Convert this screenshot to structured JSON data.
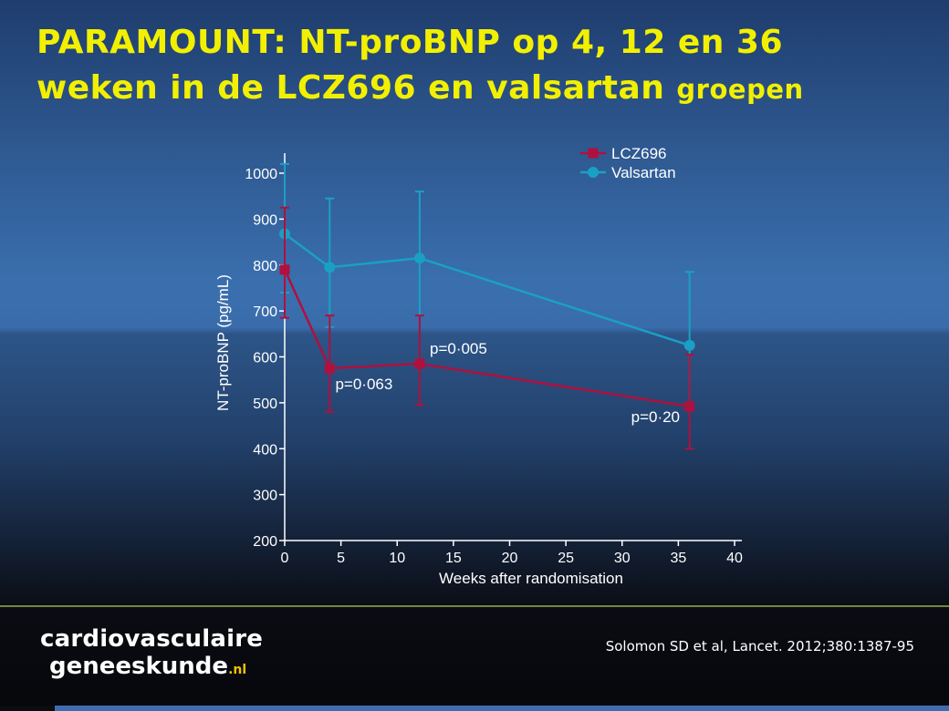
{
  "title": {
    "line1": "PARAMOUNT: NT-proBNP op  4, 12 en 36",
    "line2_main": "weken in de LCZ696 en valsartan",
    "line2_small": "groepen"
  },
  "chart_data": {
    "type": "line",
    "xlabel": "Weeks after randomisation",
    "ylabel": "NT-proBNP (pg/mL)",
    "xlim": [
      0,
      40
    ],
    "ylim": [
      200,
      1000
    ],
    "x_ticks": [
      0,
      5,
      10,
      15,
      20,
      25,
      30,
      35,
      40
    ],
    "y_ticks": [
      200,
      300,
      400,
      500,
      600,
      700,
      800,
      900,
      1000
    ],
    "grid": false,
    "legend_position": "top-right",
    "series": [
      {
        "name": "LCZ696",
        "color": "#b0103e",
        "marker": "square",
        "x": [
          0,
          4,
          12,
          36
        ],
        "y": [
          790,
          575,
          585,
          492
        ],
        "err_low": [
          685,
          480,
          495,
          400
        ],
        "err_high": [
          925,
          690,
          690,
          605
        ]
      },
      {
        "name": "Valsartan",
        "color": "#1aa0c4",
        "marker": "circle",
        "x": [
          0,
          4,
          12,
          36
        ],
        "y": [
          868,
          795,
          815,
          625
        ],
        "err_low": [
          740,
          665,
          690,
          492
        ],
        "err_high": [
          1020,
          945,
          960,
          785
        ]
      }
    ],
    "annotations": [
      {
        "text": "p=0·063",
        "x": 4.5,
        "y": 530
      },
      {
        "text": "p=0·005",
        "x": 12.9,
        "y": 607
      },
      {
        "text": "p=0·20",
        "x": 30.8,
        "y": 458
      }
    ]
  },
  "footer": {
    "logo_line1": "cardiovasculaire",
    "logo_line2": "geneeskunde",
    "logo_suffix": ".nl",
    "citation": "Solomon SD et al, Lancet. 2012;380:1387-95"
  }
}
